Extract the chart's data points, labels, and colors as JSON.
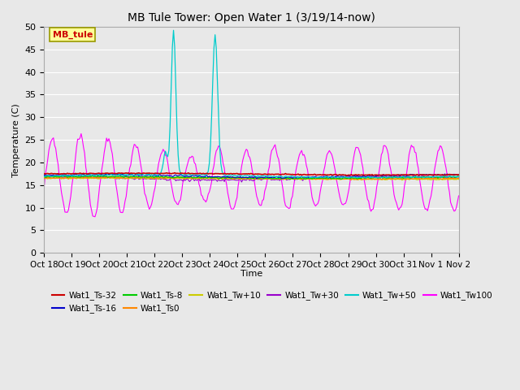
{
  "title": "MB Tule Tower: Open Water 1 (3/19/14-now)",
  "xlabel": "Time",
  "ylabel": "Temperature (C)",
  "ylim": [
    0,
    50
  ],
  "yticks": [
    0,
    5,
    10,
    15,
    20,
    25,
    30,
    35,
    40,
    45,
    50
  ],
  "x_labels": [
    "Oct 18",
    "Oct 19",
    "Oct 20",
    "Oct 21",
    "Oct 22",
    "Oct 23",
    "Oct 24",
    "Oct 25",
    "Oct 26",
    "Oct 27",
    "Oct 28",
    "Oct 29",
    "Oct 30",
    "Oct 31",
    "Nov 1",
    "Nov 2"
  ],
  "background_color": "#e8e8e8",
  "legend_entries": [
    {
      "label": "Wat1_Ts-32",
      "color": "#cc0000"
    },
    {
      "label": "Wat1_Ts-16",
      "color": "#0000cc"
    },
    {
      "label": "Wat1_Ts-8",
      "color": "#00cc00"
    },
    {
      "label": "Wat1_Ts0",
      "color": "#ff8800"
    },
    {
      "label": "Wat1_Tw+10",
      "color": "#cccc00"
    },
    {
      "label": "Wat1_Tw+30",
      "color": "#9900cc"
    },
    {
      "label": "Wat1_Tw+50",
      "color": "#00cccc"
    },
    {
      "label": "Wat1_Tw100",
      "color": "#ff00ff"
    }
  ],
  "annotation": {
    "text": "MB_tule",
    "text_color": "#cc0000",
    "bg_color": "#ffff99",
    "edge_color": "#999900"
  }
}
